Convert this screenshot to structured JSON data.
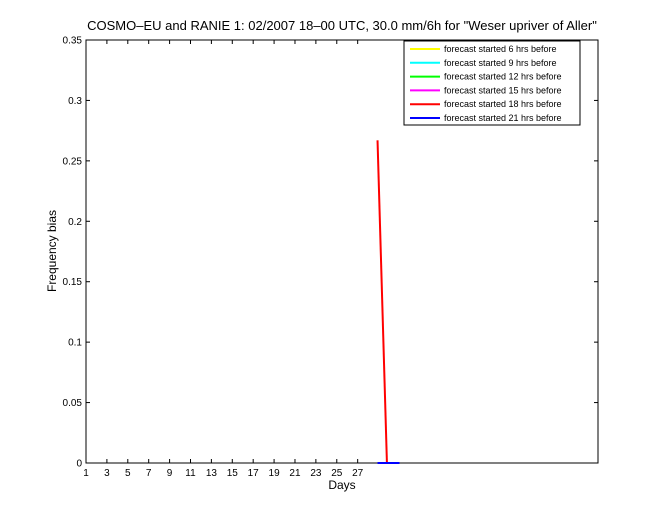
{
  "chart_data": {
    "type": "line",
    "title": "COSMO–EU and RANIE 1: 02/2007 18–00 UTC, 30.0 mm/6h for \"Weser upriver of Aller\"",
    "xlabel": "Days",
    "ylabel": "Frequency bias",
    "xlim": [
      1,
      50
    ],
    "ylim": [
      0,
      0.35
    ],
    "x_ticks": [
      1,
      3,
      5,
      7,
      9,
      11,
      13,
      15,
      17,
      19,
      21,
      23,
      25,
      27
    ],
    "x_tick_labels": [
      "1",
      "3",
      "5",
      "7",
      "9",
      "11",
      "13",
      "15",
      "17",
      "19",
      "21",
      "23",
      "25",
      "27"
    ],
    "y_ticks": [
      0,
      0.05,
      0.1,
      0.15,
      0.2,
      0.25,
      0.3,
      0.35
    ],
    "y_tick_labels": [
      "0",
      "0.05",
      "0.1",
      "0.15",
      "0.2",
      "0.25",
      "0.3",
      "0.35"
    ],
    "legend_position": "top-right",
    "series": [
      {
        "name": "forecast started 6 hrs before",
        "color": "#ffff00",
        "x": [],
        "y": []
      },
      {
        "name": "forecast started 9 hrs before",
        "color": "#00ffff",
        "x": [],
        "y": []
      },
      {
        "name": "forecast started 12 hrs before",
        "color": "#00ff00",
        "x": [],
        "y": []
      },
      {
        "name": "forecast started 15 hrs before",
        "color": "#ff00ff",
        "x": [],
        "y": []
      },
      {
        "name": "forecast started 18 hrs before",
        "color": "#ff0000",
        "x": [
          28.9,
          29.8
        ],
        "y": [
          0.267,
          0.0
        ]
      },
      {
        "name": "forecast started 21 hrs before",
        "color": "#0000ff",
        "x": [
          28.9,
          31.0
        ],
        "y": [
          0.0,
          0.0
        ]
      }
    ]
  }
}
